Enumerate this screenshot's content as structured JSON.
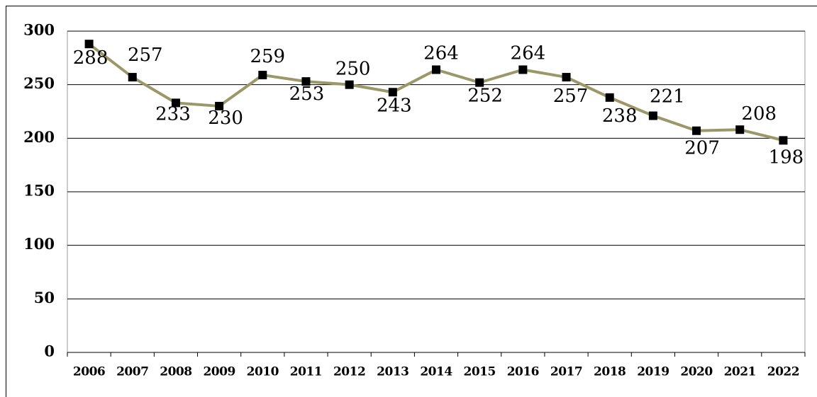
{
  "chart_data": {
    "type": "line",
    "categories": [
      "2006",
      "2007",
      "2008",
      "2009",
      "2010",
      "2011",
      "2012",
      "2013",
      "2014",
      "2015",
      "2016",
      "2017",
      "2018",
      "2019",
      "2020",
      "2021",
      "2022"
    ],
    "values": [
      288,
      257,
      233,
      230,
      259,
      253,
      250,
      243,
      264,
      252,
      264,
      257,
      238,
      221,
      207,
      208,
      198
    ],
    "color": "#9c9769",
    "ylim": [
      0,
      300
    ],
    "yticks": [
      0,
      50,
      100,
      150,
      200,
      250,
      300
    ],
    "grid": true
  }
}
